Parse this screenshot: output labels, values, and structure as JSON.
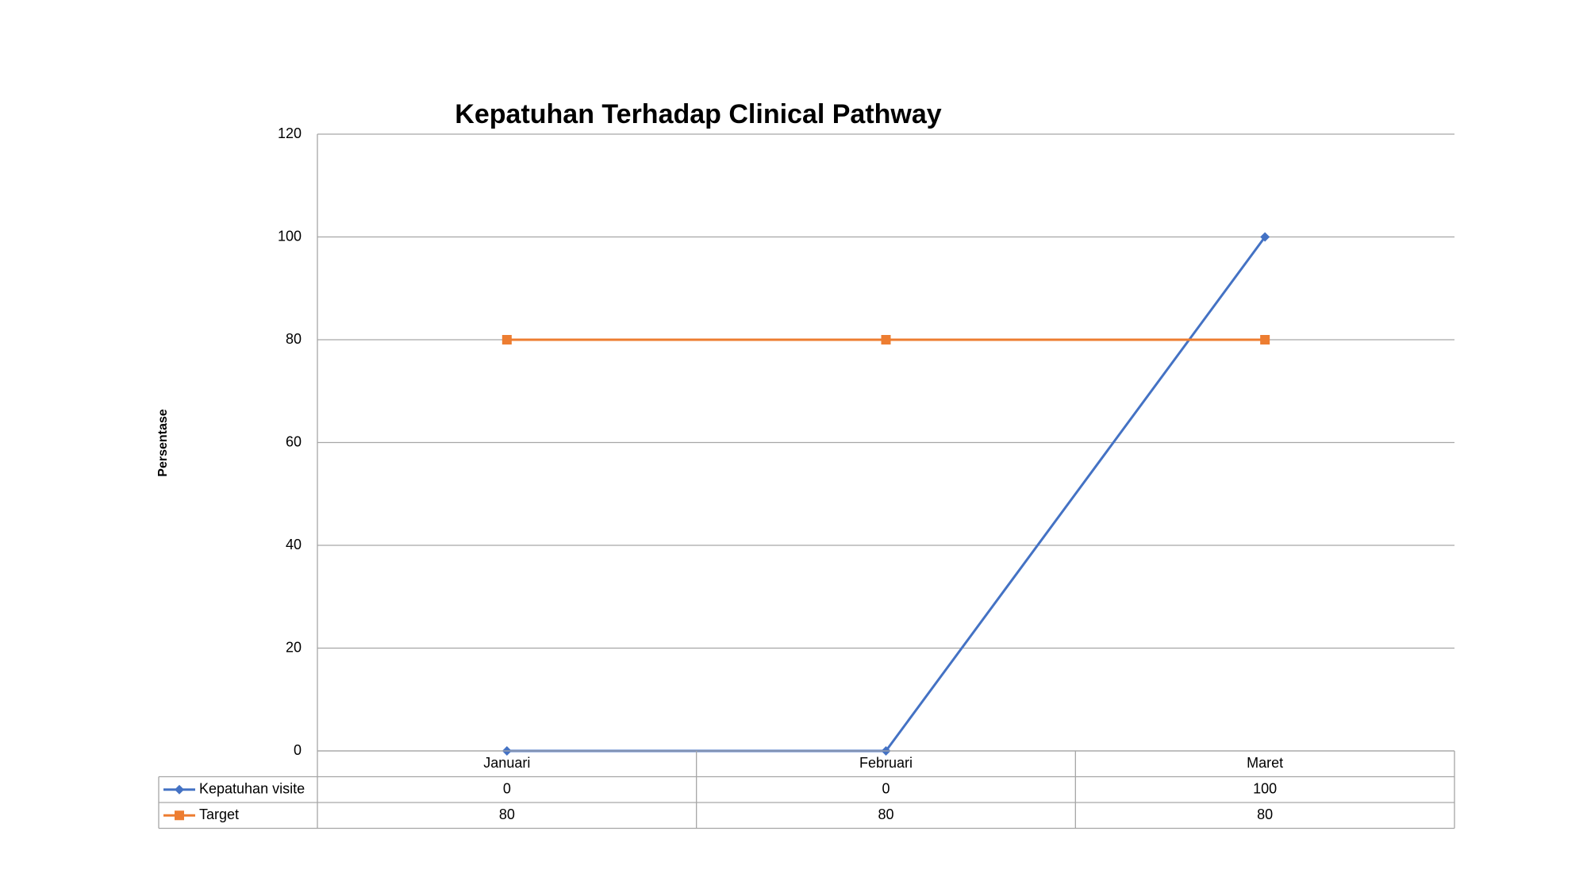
{
  "chart_data": {
    "type": "line",
    "title": "Kepatuhan Terhadap Clinical Pathway",
    "y_label": "Persentase",
    "categories": [
      "Januari",
      "Februari",
      "Maret"
    ],
    "series": [
      {
        "name": "Kepatuhan visite",
        "color": "#4472c4",
        "marker": "diamond",
        "values": [
          0,
          0,
          100
        ]
      },
      {
        "name": "Target",
        "color": "#ed7d31",
        "marker": "square",
        "values": [
          80,
          80,
          80
        ]
      }
    ],
    "ylim": [
      0,
      120
    ],
    "yticks": [
      0,
      20,
      40,
      60,
      80,
      100,
      120
    ],
    "grid": true,
    "data_table": true
  }
}
